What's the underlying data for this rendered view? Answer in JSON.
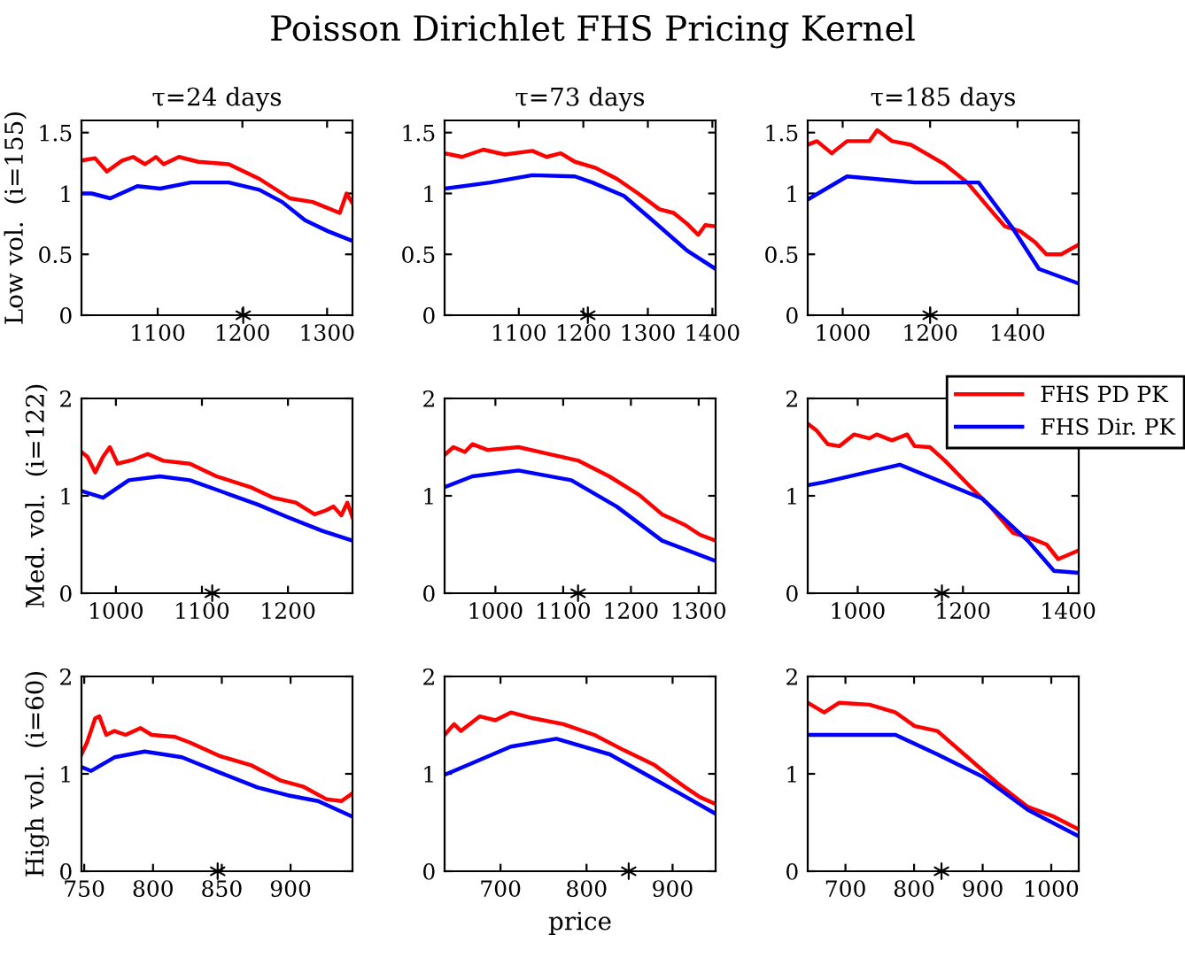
{
  "chart_data": [
    {
      "type": "line",
      "title": "τ=24 days",
      "ylabel": "Low vol.  (i=155)",
      "annotations": [
        "Poisson Dirichlet FHS Pricing Kernel"
      ],
      "xlim": [
        1010,
        1330
      ],
      "xticks": [
        1100,
        1200,
        1300
      ],
      "ylim": [
        0,
        1.6
      ],
      "yticks": [
        0,
        0.5,
        1,
        1.5
      ],
      "series": [
        {
          "color": "#ff0000",
          "x": [
            1010,
            1026,
            1040,
            1058,
            1071,
            1085,
            1098,
            1107,
            1125,
            1148,
            1184,
            1220,
            1256,
            1283,
            1315,
            1323,
            1330
          ],
          "values": [
            1.27,
            1.29,
            1.18,
            1.27,
            1.3,
            1.24,
            1.3,
            1.24,
            1.3,
            1.26,
            1.24,
            1.12,
            0.96,
            0.93,
            0.84,
            1.0,
            0.92
          ]
        },
        {
          "color": "#0000ff",
          "x": [
            1010,
            1022,
            1044,
            1076,
            1103,
            1139,
            1184,
            1220,
            1247,
            1274,
            1301,
            1330
          ],
          "values": [
            1.0,
            1.0,
            0.96,
            1.06,
            1.04,
            1.09,
            1.09,
            1.03,
            0.93,
            0.78,
            0.69,
            0.61
          ]
        },
        {
          "type": "scatter",
          "marker": "cross",
          "color": "#000000",
          "x": [
            1201
          ],
          "values": [
            0
          ]
        }
      ]
    },
    {
      "type": "line",
      "title": "τ=73 days",
      "xlim": [
        985,
        1405
      ],
      "xticks": [
        1100,
        1200,
        1300,
        1400
      ],
      "ylim": [
        0,
        1.6
      ],
      "yticks": [
        0,
        0.5,
        1,
        1.5
      ],
      "series": [
        {
          "color": "#ff0000",
          "x": [
            985,
            1012,
            1045,
            1078,
            1121,
            1143,
            1165,
            1187,
            1219,
            1252,
            1285,
            1318,
            1340,
            1361,
            1378,
            1389,
            1405
          ],
          "values": [
            1.33,
            1.3,
            1.36,
            1.32,
            1.35,
            1.3,
            1.33,
            1.26,
            1.21,
            1.12,
            1.0,
            0.87,
            0.84,
            0.75,
            0.66,
            0.74,
            0.73
          ]
        },
        {
          "color": "#0000ff",
          "x": [
            985,
            1056,
            1121,
            1187,
            1214,
            1263,
            1307,
            1361,
            1405
          ],
          "values": [
            1.04,
            1.09,
            1.15,
            1.14,
            1.09,
            0.98,
            0.78,
            0.53,
            0.38
          ]
        },
        {
          "type": "scatter",
          "marker": "cross",
          "color": "#000000",
          "x": [
            1207
          ],
          "values": [
            0
          ]
        }
      ]
    },
    {
      "type": "line",
      "title": "τ=185 days",
      "xlim": [
        920,
        1540
      ],
      "xticks": [
        1000,
        1200,
        1400
      ],
      "ylim": [
        0,
        1.6
      ],
      "yticks": [
        0,
        0.5,
        1,
        1.5
      ],
      "series": [
        {
          "color": "#ff0000",
          "x": [
            920,
            941,
            975,
            1010,
            1061,
            1079,
            1113,
            1156,
            1190,
            1233,
            1285,
            1337,
            1371,
            1406,
            1440,
            1466,
            1500,
            1540
          ],
          "values": [
            1.4,
            1.43,
            1.33,
            1.43,
            1.43,
            1.52,
            1.43,
            1.4,
            1.33,
            1.24,
            1.09,
            0.87,
            0.73,
            0.69,
            0.6,
            0.5,
            0.5,
            0.58
          ]
        },
        {
          "color": "#0000ff",
          "x": [
            920,
            1010,
            1165,
            1311,
            1388,
            1449,
            1540
          ],
          "values": [
            0.95,
            1.14,
            1.09,
            1.09,
            0.72,
            0.38,
            0.26
          ]
        },
        {
          "type": "scatter",
          "marker": "cross",
          "color": "#000000",
          "x": [
            1200
          ],
          "values": [
            0
          ]
        }
      ]
    },
    {
      "type": "line",
      "ylabel": "Med. vol.  (i=122)",
      "xlim": [
        960,
        1275
      ],
      "xticks": [
        1000,
        1100,
        1200
      ],
      "ylim": [
        0,
        2
      ],
      "yticks": [
        0,
        1,
        2
      ],
      "series": [
        {
          "color": "#ff0000",
          "x": [
            960,
            967,
            976,
            985,
            993,
            1002,
            1020,
            1037,
            1055,
            1086,
            1117,
            1156,
            1183,
            1209,
            1231,
            1244,
            1253,
            1262,
            1269,
            1275
          ],
          "values": [
            1.45,
            1.4,
            1.24,
            1.4,
            1.5,
            1.33,
            1.37,
            1.43,
            1.36,
            1.33,
            1.2,
            1.09,
            0.98,
            0.93,
            0.81,
            0.85,
            0.89,
            0.8,
            0.93,
            0.78
          ]
        },
        {
          "color": "#0000ff",
          "x": [
            960,
            985,
            1015,
            1051,
            1086,
            1121,
            1165,
            1200,
            1240,
            1275
          ],
          "values": [
            1.05,
            0.98,
            1.16,
            1.2,
            1.16,
            1.05,
            0.91,
            0.78,
            0.64,
            0.54
          ]
        },
        {
          "type": "scatter",
          "marker": "cross",
          "color": "#000000",
          "x": [
            1112
          ],
          "values": [
            0
          ]
        }
      ]
    },
    {
      "type": "line",
      "xlim": [
        925,
        1325
      ],
      "xticks": [
        1000,
        1100,
        1200,
        1300
      ],
      "ylim": [
        0,
        2
      ],
      "yticks": [
        0,
        1,
        2
      ],
      "series": [
        {
          "color": "#ff0000",
          "x": [
            925,
            938,
            955,
            966,
            989,
            1034,
            1078,
            1123,
            1168,
            1212,
            1246,
            1280,
            1302,
            1325
          ],
          "values": [
            1.42,
            1.5,
            1.45,
            1.53,
            1.47,
            1.5,
            1.43,
            1.36,
            1.2,
            1.01,
            0.81,
            0.7,
            0.6,
            0.54
          ]
        },
        {
          "color": "#0000ff",
          "x": [
            925,
            966,
            1034,
            1112,
            1179,
            1246,
            1325
          ],
          "values": [
            1.09,
            1.2,
            1.26,
            1.16,
            0.89,
            0.54,
            0.33
          ]
        },
        {
          "type": "scatter",
          "marker": "cross",
          "color": "#000000",
          "x": [
            1122
          ],
          "values": [
            0
          ]
        }
      ]
    },
    {
      "type": "line",
      "legend": "top right",
      "xlim": [
        905,
        1420
      ],
      "xticks": [
        1000,
        1200,
        1400
      ],
      "ylim": [
        0,
        2
      ],
      "yticks": [
        0,
        1,
        2
      ],
      "series": [
        {
          "name": "FHS PD PK",
          "color": "#ff0000",
          "x": [
            905,
            922,
            943,
            965,
            993,
            1022,
            1036,
            1065,
            1094,
            1108,
            1137,
            1166,
            1209,
            1252,
            1295,
            1331,
            1359,
            1381,
            1420
          ],
          "values": [
            1.74,
            1.67,
            1.53,
            1.51,
            1.63,
            1.59,
            1.63,
            1.57,
            1.63,
            1.51,
            1.5,
            1.36,
            1.12,
            0.89,
            0.62,
            0.56,
            0.5,
            0.35,
            0.44
          ]
        },
        {
          "name": "FHS Dir. PK",
          "color": "#0000ff",
          "x": [
            905,
            936,
            1080,
            1237,
            1323,
            1373,
            1420
          ],
          "values": [
            1.11,
            1.14,
            1.32,
            0.97,
            0.54,
            0.23,
            0.21
          ]
        },
        {
          "type": "scatter",
          "marker": "cross",
          "color": "#000000",
          "x": [
            1160
          ],
          "values": [
            0
          ]
        }
      ]
    },
    {
      "type": "line",
      "ylabel": "High vol.  (i=60)",
      "xlim": [
        748,
        945
      ],
      "xticks": [
        750,
        800,
        850,
        900
      ],
      "ylim": [
        0,
        2
      ],
      "yticks": [
        0,
        1,
        2
      ],
      "series": [
        {
          "color": "#ff0000",
          "x": [
            748,
            752,
            758,
            761,
            766,
            772,
            780,
            791,
            799,
            816,
            827,
            849,
            871,
            893,
            909,
            926,
            937,
            945
          ],
          "values": [
            1.2,
            1.32,
            1.57,
            1.59,
            1.4,
            1.44,
            1.4,
            1.47,
            1.4,
            1.38,
            1.32,
            1.18,
            1.09,
            0.93,
            0.87,
            0.74,
            0.72,
            0.8
          ]
        },
        {
          "color": "#0000ff",
          "x": [
            748,
            755,
            772,
            794,
            821,
            849,
            876,
            898,
            920,
            945
          ],
          "values": [
            1.07,
            1.03,
            1.17,
            1.23,
            1.17,
            1.01,
            0.86,
            0.78,
            0.72,
            0.56
          ]
        },
        {
          "type": "scatter",
          "marker": "cross",
          "color": "#000000",
          "x": [
            847
          ],
          "values": [
            0
          ]
        }
      ]
    },
    {
      "type": "line",
      "xlabel": "price",
      "xlim": [
        635,
        950
      ],
      "xticks": [
        700,
        800,
        900
      ],
      "ylim": [
        0,
        2
      ],
      "yticks": [
        0,
        1,
        2
      ],
      "series": [
        {
          "color": "#ff0000",
          "x": [
            635,
            646,
            654,
            676,
            694,
            712,
            738,
            773,
            809,
            844,
            879,
            915,
            932,
            950
          ],
          "values": [
            1.4,
            1.51,
            1.44,
            1.59,
            1.55,
            1.63,
            1.57,
            1.51,
            1.4,
            1.24,
            1.09,
            0.86,
            0.76,
            0.69
          ]
        },
        {
          "color": "#0000ff",
          "x": [
            635,
            712,
            765,
            827,
            888,
            950
          ],
          "values": [
            0.99,
            1.28,
            1.36,
            1.2,
            0.9,
            0.59
          ]
        },
        {
          "type": "scatter",
          "marker": "cross",
          "color": "#000000",
          "x": [
            849
          ],
          "values": [
            0
          ]
        }
      ]
    },
    {
      "type": "line",
      "xlim": [
        645,
        1040
      ],
      "xticks": [
        700,
        800,
        900,
        1000
      ],
      "ylim": [
        0,
        2
      ],
      "yticks": [
        0,
        1,
        2
      ],
      "series": [
        {
          "color": "#ff0000",
          "x": [
            645,
            669,
            691,
            735,
            773,
            801,
            834,
            878,
            922,
            966,
            1004,
            1040
          ],
          "values": [
            1.73,
            1.63,
            1.73,
            1.71,
            1.63,
            1.49,
            1.44,
            1.17,
            0.9,
            0.66,
            0.56,
            0.43
          ]
        },
        {
          "color": "#0000ff",
          "x": [
            645,
            773,
            834,
            900,
            966,
            1040
          ],
          "values": [
            1.4,
            1.4,
            1.2,
            0.97,
            0.63,
            0.36
          ]
        },
        {
          "type": "scatter",
          "marker": "cross",
          "color": "#000000",
          "x": [
            840
          ],
          "values": [
            0
          ]
        }
      ]
    }
  ]
}
